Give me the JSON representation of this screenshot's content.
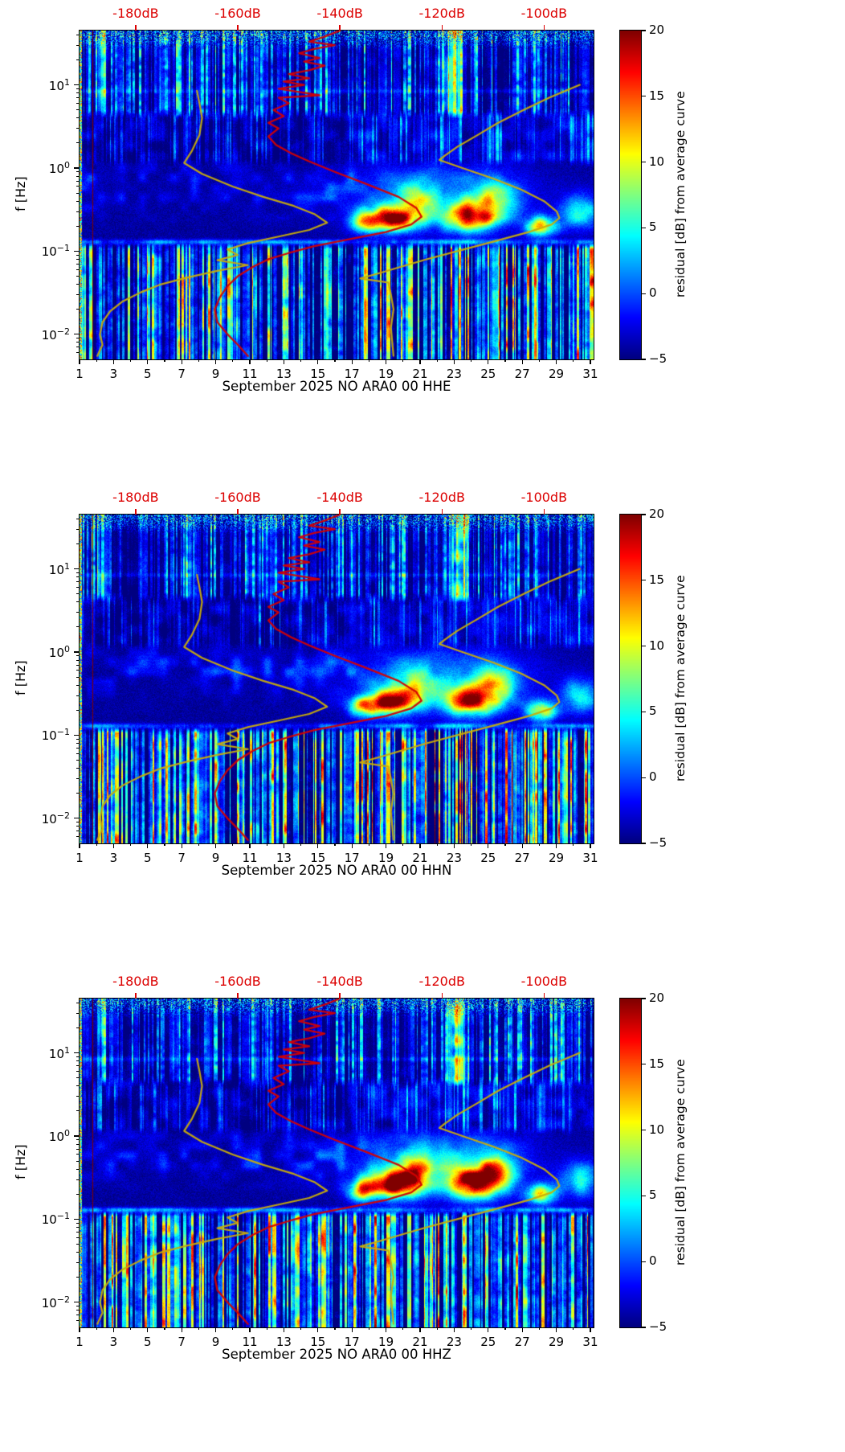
{
  "chart_data": [
    {
      "type": "heatmap",
      "xlabel": "September 2025 NO ARA0 00 HHE",
      "ylabel": "f [Hz]",
      "x_ticks": [
        1,
        3,
        5,
        7,
        9,
        11,
        13,
        15,
        17,
        19,
        21,
        23,
        25,
        27,
        29,
        31
      ],
      "x_range_days": [
        1,
        31.19
      ],
      "y_scale": "log",
      "y_tick_exponents": [
        1,
        0,
        -1,
        -2
      ],
      "f_range_hz": [
        0.005,
        45
      ],
      "top_axis": {
        "labels": [
          "-180dB",
          "-160dB",
          "-140dB",
          "-120dB",
          "-100dB"
        ],
        "ticks_db": [
          -180,
          -160,
          -140,
          -120,
          -100
        ],
        "range_db": [
          -191,
          -90.3
        ],
        "color": "#dc0000"
      },
      "colorbar": {
        "label": "residual [dB] from average curve",
        "ticks": [
          20,
          15,
          10,
          5,
          0,
          -5
        ],
        "range": [
          -5,
          20
        ],
        "colormap": "jet"
      },
      "seed": 101,
      "features": {
        "quiet_until_day": 16.5,
        "hot_low_column_day": 19.1,
        "gap_line_day": 1.75,
        "high_freq_hot_windows": [
          {
            "day": 23.0,
            "sigma": 0.45,
            "amp": 11
          },
          {
            "day": 2.3,
            "sigma": 0.3,
            "amp": 6
          }
        ],
        "blobs": [
          {
            "d": 17.6,
            "ds": 0.8,
            "lf": -0.65,
            "ls": 0.12,
            "a": 14
          },
          {
            "d": 19.2,
            "ds": 1.3,
            "lf": -0.6,
            "ls": 0.15,
            "a": 24
          },
          {
            "d": 20.7,
            "ds": 1.0,
            "lf": -0.45,
            "ls": 0.2,
            "a": 13
          },
          {
            "d": 23.9,
            "ds": 1.5,
            "lf": -0.58,
            "ls": 0.17,
            "a": 21
          },
          {
            "d": 25.4,
            "ds": 1.2,
            "lf": -0.4,
            "ls": 0.22,
            "a": 12
          },
          {
            "d": 28.1,
            "ds": 0.9,
            "lf": -0.7,
            "ls": 0.12,
            "a": 17
          },
          {
            "d": 30.4,
            "ds": 1.1,
            "lf": -0.52,
            "ls": 0.2,
            "a": 10
          },
          {
            "d": 22.0,
            "ds": 5.0,
            "lf": -0.3,
            "ls": 0.38,
            "a": 7
          }
        ]
      }
    },
    {
      "type": "heatmap",
      "xlabel": "September 2025 NO ARA0 00 HHN",
      "ylabel": "f [Hz]",
      "x_ticks": [
        1,
        3,
        5,
        7,
        9,
        11,
        13,
        15,
        17,
        19,
        21,
        23,
        25,
        27,
        29,
        31
      ],
      "x_range_days": [
        1,
        31.19
      ],
      "y_scale": "log",
      "y_tick_exponents": [
        1,
        0,
        -1,
        -2
      ],
      "f_range_hz": [
        0.005,
        45
      ],
      "top_axis": {
        "labels": [
          "-180dB",
          "-160dB",
          "-140dB",
          "-120dB",
          "-100dB"
        ],
        "ticks_db": [
          -180,
          -160,
          -140,
          -120,
          -100
        ],
        "range_db": [
          -191,
          -90.3
        ],
        "color": "#dc0000"
      },
      "colorbar": {
        "label": "residual [dB] from average curve",
        "ticks": [
          20,
          15,
          10,
          5,
          0,
          -5
        ],
        "range": [
          -5,
          20
        ],
        "colormap": "jet"
      },
      "seed": 202,
      "features": {
        "quiet_until_day": 16.5,
        "hot_low_column_day": 19.1,
        "gap_line_day": 1.75,
        "high_freq_hot_windows": [
          {
            "day": 23.3,
            "sigma": 0.5,
            "amp": 11
          },
          {
            "day": 2.3,
            "sigma": 0.3,
            "amp": 5
          }
        ],
        "blobs": [
          {
            "d": 17.6,
            "ds": 0.8,
            "lf": -0.65,
            "ls": 0.12,
            "a": 13
          },
          {
            "d": 19.2,
            "ds": 1.3,
            "lf": -0.6,
            "ls": 0.15,
            "a": 23
          },
          {
            "d": 20.7,
            "ds": 1.0,
            "lf": -0.45,
            "ls": 0.2,
            "a": 12
          },
          {
            "d": 23.9,
            "ds": 1.5,
            "lf": -0.58,
            "ls": 0.17,
            "a": 21
          },
          {
            "d": 25.4,
            "ds": 1.2,
            "lf": -0.4,
            "ls": 0.22,
            "a": 12
          },
          {
            "d": 28.1,
            "ds": 0.9,
            "lf": -0.7,
            "ls": 0.12,
            "a": 16
          },
          {
            "d": 30.4,
            "ds": 1.1,
            "lf": -0.52,
            "ls": 0.2,
            "a": 10
          },
          {
            "d": 22.0,
            "ds": 5.0,
            "lf": -0.3,
            "ls": 0.38,
            "a": 7
          }
        ]
      }
    },
    {
      "type": "heatmap",
      "xlabel": "September 2025 NO ARA0 00 HHZ",
      "ylabel": "f [Hz]",
      "x_ticks": [
        1,
        3,
        5,
        7,
        9,
        11,
        13,
        15,
        17,
        19,
        21,
        23,
        25,
        27,
        29,
        31
      ],
      "x_range_days": [
        1,
        31.19
      ],
      "y_scale": "log",
      "y_tick_exponents": [
        1,
        0,
        -1,
        -2
      ],
      "f_range_hz": [
        0.005,
        45
      ],
      "top_axis": {
        "labels": [
          "-180dB",
          "-160dB",
          "-140dB",
          "-120dB",
          "-100dB"
        ],
        "ticks_db": [
          -180,
          -160,
          -140,
          -120,
          -100
        ],
        "range_db": [
          -191,
          -90.3
        ],
        "color": "#dc0000"
      },
      "colorbar": {
        "label": "residual [dB] from average curve",
        "ticks": [
          20,
          15,
          10,
          5,
          0,
          -5
        ],
        "range": [
          -5,
          20
        ],
        "colormap": "jet"
      },
      "seed": 303,
      "features": {
        "quiet_until_day": 16.5,
        "hot_low_column_day": 19.1,
        "gap_line_day": 1.75,
        "high_freq_hot_windows": [
          {
            "day": 23.2,
            "sigma": 0.5,
            "amp": 12
          },
          {
            "day": 2.3,
            "sigma": 0.3,
            "amp": 5
          }
        ],
        "blobs": [
          {
            "d": 17.6,
            "ds": 0.8,
            "lf": -0.65,
            "ls": 0.12,
            "a": 14
          },
          {
            "d": 19.3,
            "ds": 1.4,
            "lf": -0.58,
            "ls": 0.16,
            "a": 24
          },
          {
            "d": 20.7,
            "ds": 1.0,
            "lf": -0.45,
            "ls": 0.2,
            "a": 13
          },
          {
            "d": 24.0,
            "ds": 1.6,
            "lf": -0.56,
            "ls": 0.18,
            "a": 22
          },
          {
            "d": 25.4,
            "ds": 1.2,
            "lf": -0.4,
            "ls": 0.22,
            "a": 13
          },
          {
            "d": 28.1,
            "ds": 0.9,
            "lf": -0.7,
            "ls": 0.12,
            "a": 17
          },
          {
            "d": 30.4,
            "ds": 1.1,
            "lf": -0.52,
            "ls": 0.2,
            "a": 10
          },
          {
            "d": 22.0,
            "ds": 5.0,
            "lf": -0.3,
            "ls": 0.38,
            "a": 8
          }
        ]
      }
    }
  ],
  "overlays": {
    "curves": [
      {
        "name": "median-psd-curve",
        "color": "#d40000",
        "width": 2.3,
        "points_f_db": [
          [
            45,
            -140
          ],
          [
            38,
            -143
          ],
          [
            33,
            -146
          ],
          [
            30,
            -141
          ],
          [
            27,
            -145
          ],
          [
            24,
            -148
          ],
          [
            21,
            -144
          ],
          [
            19,
            -147
          ],
          [
            17,
            -143
          ],
          [
            15,
            -146
          ],
          [
            13.5,
            -150
          ],
          [
            12,
            -146
          ],
          [
            11,
            -151
          ],
          [
            10,
            -147
          ],
          [
            9,
            -152
          ],
          [
            8.2,
            -148
          ],
          [
            7.5,
            -144
          ],
          [
            7,
            -152
          ],
          [
            6,
            -150
          ],
          [
            5,
            -153
          ],
          [
            4.2,
            -151
          ],
          [
            3.5,
            -154
          ],
          [
            3,
            -152
          ],
          [
            2.4,
            -154
          ],
          [
            1.9,
            -152.5
          ],
          [
            1.5,
            -149.5
          ],
          [
            1.2,
            -146
          ],
          [
            0.9,
            -141
          ],
          [
            0.65,
            -135
          ],
          [
            0.45,
            -128.5
          ],
          [
            0.33,
            -125
          ],
          [
            0.26,
            -124
          ],
          [
            0.21,
            -126
          ],
          [
            0.17,
            -131
          ],
          [
            0.14,
            -138
          ],
          [
            0.115,
            -145
          ],
          [
            0.095,
            -150
          ],
          [
            0.08,
            -154
          ],
          [
            0.065,
            -157
          ],
          [
            0.05,
            -160
          ],
          [
            0.038,
            -162
          ],
          [
            0.028,
            -163.5
          ],
          [
            0.02,
            -164.5
          ],
          [
            0.014,
            -164
          ],
          [
            0.01,
            -162
          ],
          [
            0.0075,
            -160
          ],
          [
            0.0055,
            -158
          ]
        ]
      },
      {
        "name": "low-percentile-curve",
        "color": "#c9ad08",
        "width": 2.2,
        "points_f_db": [
          [
            8.5,
            -168
          ],
          [
            6,
            -167.5
          ],
          [
            4,
            -167
          ],
          [
            2.5,
            -167.5
          ],
          [
            1.6,
            -169
          ],
          [
            1.15,
            -170.5
          ],
          [
            0.85,
            -167
          ],
          [
            0.6,
            -161
          ],
          [
            0.45,
            -155
          ],
          [
            0.35,
            -149
          ],
          [
            0.28,
            -145
          ],
          [
            0.22,
            -142.5
          ],
          [
            0.18,
            -146
          ],
          [
            0.15,
            -152
          ],
          [
            0.125,
            -158
          ],
          [
            0.105,
            -162
          ],
          [
            0.09,
            -160
          ],
          [
            0.078,
            -164
          ],
          [
            0.068,
            -158
          ],
          [
            0.058,
            -164
          ],
          [
            0.048,
            -170
          ],
          [
            0.04,
            -175
          ],
          [
            0.032,
            -179
          ],
          [
            0.025,
            -182.5
          ],
          [
            0.019,
            -185
          ],
          [
            0.014,
            -186.5
          ],
          [
            0.01,
            -187
          ],
          [
            0.0075,
            -186.5
          ],
          [
            0.0055,
            -187.5
          ]
        ]
      },
      {
        "name": "high-percentile-curve",
        "color": "#c9ad08",
        "width": 2.2,
        "points_f_db": [
          [
            10,
            -93
          ],
          [
            7,
            -99
          ],
          [
            5,
            -104
          ],
          [
            3.5,
            -109
          ],
          [
            2.5,
            -113
          ],
          [
            1.8,
            -117
          ],
          [
            1.4,
            -119.5
          ],
          [
            1.25,
            -120.5
          ],
          [
            1.0,
            -116
          ],
          [
            0.75,
            -110
          ],
          [
            0.55,
            -104.5
          ],
          [
            0.4,
            -100
          ],
          [
            0.3,
            -97.5
          ],
          [
            0.25,
            -97
          ],
          [
            0.21,
            -98.5
          ],
          [
            0.17,
            -103
          ],
          [
            0.13,
            -110
          ],
          [
            0.1,
            -117
          ],
          [
            0.08,
            -123
          ],
          [
            0.065,
            -128
          ],
          [
            0.055,
            -132
          ],
          [
            0.047,
            -136
          ],
          [
            0.042,
            -130.5
          ],
          [
            0.03,
            -130
          ],
          [
            0.02,
            -129.5
          ],
          [
            0.012,
            -130
          ],
          [
            0.0055,
            -129.5
          ]
        ]
      }
    ]
  }
}
